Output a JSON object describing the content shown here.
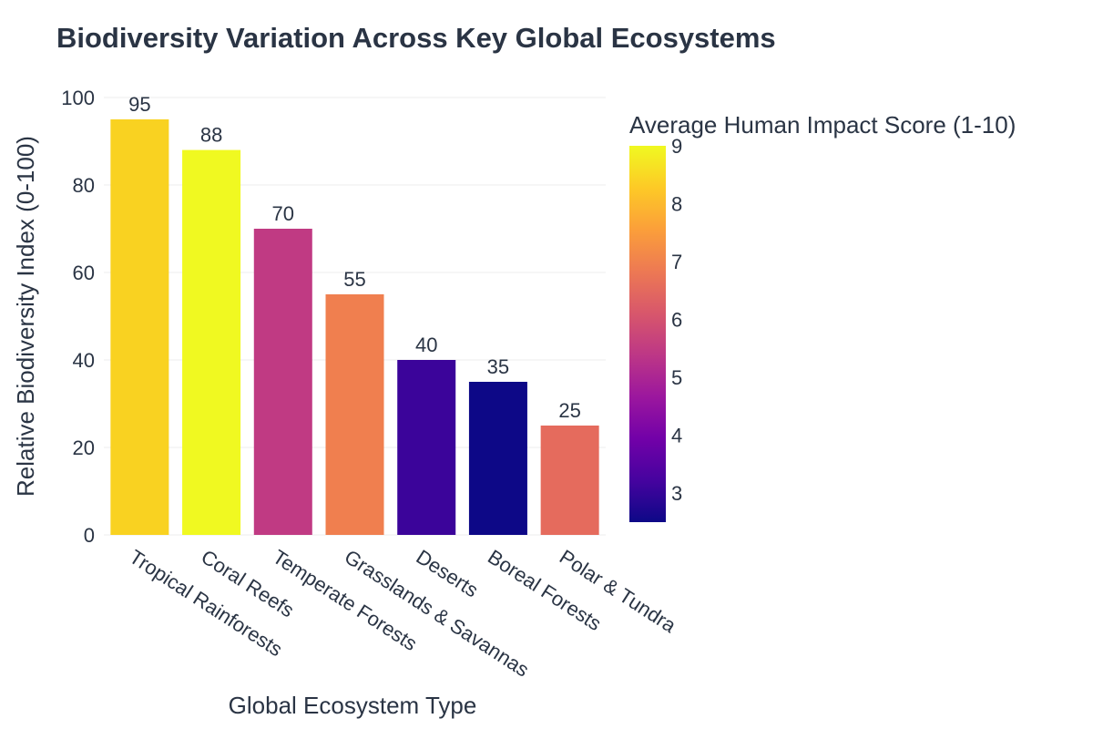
{
  "chart_data": {
    "type": "bar",
    "title": "Biodiversity Variation Across Key Global Ecosystems",
    "xlabel": "Global Ecosystem Type",
    "ylabel": "Relative Biodiversity Index (0-100)",
    "ylim": [
      0,
      100
    ],
    "yticks": [
      0,
      20,
      40,
      60,
      80,
      100
    ],
    "grid": true,
    "categories": [
      "Tropical Rainforests",
      "Coral Reefs",
      "Temperate Forests",
      "Grasslands & Savannas",
      "Deserts",
      "Boreal Forests",
      "Polar & Tundra"
    ],
    "values": [
      95,
      88,
      70,
      55,
      40,
      35,
      25
    ],
    "data_labels": [
      "95",
      "88",
      "70",
      "55",
      "40",
      "35",
      "25"
    ],
    "colors": [
      "#f9d221",
      "#f0f921",
      "#c03a83",
      "#f07f4f",
      "#3b049a",
      "#0d0887",
      "#e56b5d"
    ],
    "colorbar": {
      "title": "Average Human Impact Score (1-10)",
      "range": [
        2.5,
        9
      ],
      "ticks": [
        3,
        4,
        5,
        6,
        7,
        8,
        9
      ],
      "colorscale": [
        "#0d0887",
        "#46039f",
        "#7201a8",
        "#9c179e",
        "#bd3786",
        "#d8576b",
        "#ed7953",
        "#fb9f3a",
        "#fdca26",
        "#f0f921"
      ]
    }
  }
}
